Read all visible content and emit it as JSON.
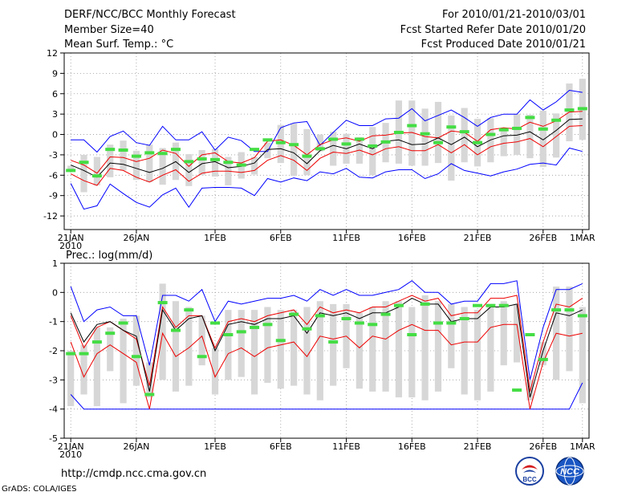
{
  "header": {
    "title": "DERF/NCC/BCC Monthly Forecast",
    "member_size": "Member Size=40",
    "variable": "Mean Surf. Temp.: °C",
    "period": "For 2010/01/21-2010/03/01",
    "started": "Fcst Started Refer Date 2010/01/20",
    "produced": "Fcst Produced Date 2010/01/21"
  },
  "footer": {
    "url": "http://cmdp.ncc.cma.gov.cn",
    "credit": "GrADS: COLA/IGES",
    "logo_left": "BCC",
    "logo_right": "NCC"
  },
  "colors": {
    "envelope": "#0000ff",
    "band": "#ee0000",
    "mean": "#000000",
    "box": "#d7d7d7",
    "marker": "#44dd44",
    "grid": "#999999"
  },
  "chart_data": [
    {
      "type": "line",
      "title": "Mean Surf. Temp.: °C",
      "x_tick_labels": [
        "21JAN",
        "26JAN",
        "1FEB",
        "6FEB",
        "11FEB",
        "16FEB",
        "21FEB",
        "26FEB",
        "1MAR"
      ],
      "x_tick_days": [
        0,
        5,
        11,
        16,
        21,
        26,
        31,
        36,
        39
      ],
      "x_year_label": "2010",
      "xlim": [
        -0.5,
        39.5
      ],
      "ylim": [
        -14,
        12
      ],
      "y_ticks": [
        12,
        9,
        6,
        3,
        0,
        -3,
        -6,
        -9,
        -12
      ],
      "series": [
        {
          "name": "max",
          "values": [
            -0.8,
            -0.8,
            -2.6,
            -0.3,
            0.5,
            -1.2,
            -1.6,
            1.2,
            -0.8,
            -0.8,
            0.4,
            -2.3,
            -0.4,
            -0.9,
            -2.5,
            -2.5,
            1.0,
            1.7,
            1.9,
            -1.6,
            0.3,
            2.1,
            1.3,
            1.3,
            2.3,
            2.4,
            3.8,
            2.0,
            2.8,
            3.6,
            2.5,
            1.2,
            2.5,
            3.0,
            3.0,
            5.1,
            3.6,
            4.8,
            6.5,
            6.2
          ]
        },
        {
          "name": "upper",
          "values": [
            -3.8,
            -4.5,
            -5.7,
            -3.3,
            -3.4,
            -4.0,
            -3.5,
            -2.3,
            -2.8,
            -4.7,
            -3.0,
            -2.7,
            -4.0,
            -4.2,
            -3.4,
            -1.0,
            -0.8,
            -1.6,
            -3.0,
            -1.5,
            -0.8,
            -0.5,
            -1.0,
            -0.2,
            -0.1,
            0.2,
            0.3,
            -0.3,
            -0.5,
            0.5,
            0.3,
            -1.0,
            0.7,
            1.0,
            0.8,
            1.8,
            1.2,
            2.0,
            3.3,
            3.4
          ]
        },
        {
          "name": "mean",
          "values": [
            -4.5,
            -5.3,
            -6.3,
            -4.2,
            -4.4,
            -5.0,
            -5.6,
            -5.0,
            -4.0,
            -5.6,
            -4.3,
            -4.0,
            -4.9,
            -4.7,
            -4.2,
            -2.2,
            -2.1,
            -2.7,
            -4.3,
            -2.4,
            -1.6,
            -2.1,
            -1.4,
            -2.1,
            -1.0,
            -0.8,
            -1.5,
            -1.4,
            -0.5,
            -1.5,
            -0.4,
            -1.8,
            -0.8,
            -0.2,
            -0.1,
            0.4,
            -0.8,
            0.6,
            2.2,
            2.3
          ]
        },
        {
          "name": "lower",
          "values": [
            -5.8,
            -6.8,
            -7.5,
            -5.0,
            -5.3,
            -6.3,
            -7.0,
            -6.0,
            -5.2,
            -6.9,
            -5.7,
            -5.4,
            -5.4,
            -5.6,
            -5.3,
            -3.8,
            -3.1,
            -3.8,
            -5.3,
            -3.5,
            -2.6,
            -2.8,
            -2.3,
            -3.0,
            -2.1,
            -1.8,
            -2.4,
            -2.4,
            -1.5,
            -2.7,
            -1.5,
            -3.0,
            -1.8,
            -1.3,
            -1.1,
            -0.6,
            -1.8,
            -0.3,
            1.2,
            1.3
          ]
        },
        {
          "name": "min",
          "values": [
            -7.2,
            -11.0,
            -10.5,
            -7.3,
            -8.7,
            -10.0,
            -10.7,
            -8.9,
            -7.9,
            -10.7,
            -7.9,
            -7.8,
            -7.8,
            -7.9,
            -9.0,
            -6.5,
            -7.0,
            -6.4,
            -6.8,
            -5.5,
            -5.8,
            -5.0,
            -6.3,
            -6.4,
            -5.5,
            -5.2,
            -5.2,
            -6.5,
            -5.8,
            -4.3,
            -5.3,
            -5.7,
            -6.1,
            -5.5,
            -5.1,
            -4.4,
            -4.2,
            -4.5,
            -2.0,
            -2.5
          ]
        },
        {
          "name": "box_high",
          "values": [
            -4.6,
            -3.0,
            -3.3,
            -1.5,
            -0.9,
            -2.4,
            -1.5,
            -2.0,
            -1.2,
            -2.9,
            -2.3,
            -2.1,
            -3.3,
            -2.6,
            -3.3,
            -1.2,
            1.4,
            1.6,
            0.8,
            0.0,
            0.4,
            0.1,
            -0.4,
            1.1,
            1.7,
            5.0,
            5.0,
            3.8,
            4.8,
            2.8,
            3.9,
            2.3,
            2.4,
            0.8,
            3.0,
            2.9,
            3.5,
            3.1,
            7.5,
            8.2
          ]
        },
        {
          "name": "box_low",
          "values": [
            -5.2,
            -8.5,
            -7.5,
            -6.3,
            -5.3,
            -6.7,
            -7.0,
            -7.4,
            -6.7,
            -7.6,
            -6.0,
            -6.2,
            -7.5,
            -6.5,
            -5.9,
            -3.5,
            -4.2,
            -6.1,
            -6.0,
            -2.5,
            -4.6,
            -4.3,
            -4.3,
            -6.0,
            -4.1,
            -4.3,
            -4.6,
            -4.6,
            -4.2,
            -6.8,
            -4.1,
            -4.7,
            -4.1,
            -3.2,
            -3.0,
            -3.5,
            -4.8,
            -3.4,
            -1.0,
            -0.8
          ]
        },
        {
          "name": "marker",
          "values": [
            -5.3,
            -4.1,
            -6.1,
            -2.2,
            -2.3,
            -3.2,
            -2.7,
            -2.8,
            -2.2,
            -4.0,
            -3.6,
            -3.7,
            -4.1,
            -4.5,
            -2.2,
            -0.8,
            -1.2,
            -1.5,
            -3.2,
            -2.1,
            -0.7,
            -1.4,
            -0.7,
            -1.7,
            -1.1,
            0.3,
            1.3,
            0.1,
            -1.2,
            1.1,
            0.4,
            -1.2,
            0.0,
            0.7,
            0.9,
            2.5,
            0.8,
            2.1,
            3.6,
            3.8
          ]
        }
      ]
    },
    {
      "type": "line",
      "title": "Prec.: log(mm/d)",
      "x_tick_labels": [
        "21JAN",
        "26JAN",
        "1FEB",
        "6FEB",
        "11FEB",
        "16FEB",
        "21FEB",
        "26FEB",
        "1MAR"
      ],
      "x_tick_days": [
        0,
        5,
        11,
        16,
        21,
        26,
        31,
        36,
        39
      ],
      "x_year_label": "2010",
      "xlim": [
        -0.5,
        39.5
      ],
      "ylim": [
        -5,
        1
      ],
      "y_ticks": [
        1,
        0,
        -1,
        -2,
        -3,
        -4,
        -5
      ],
      "series": [
        {
          "name": "max",
          "values": [
            0.2,
            -1.0,
            -0.6,
            -0.5,
            -0.8,
            -0.8,
            -2.5,
            -0.1,
            -0.1,
            -0.3,
            0.1,
            -1.0,
            -0.3,
            -0.4,
            -0.3,
            -0.2,
            -0.2,
            -0.1,
            -0.3,
            0.1,
            -0.1,
            0.1,
            -0.1,
            -0.1,
            0.0,
            0.1,
            0.4,
            0.0,
            0.0,
            -0.4,
            -0.3,
            -0.3,
            0.3,
            0.3,
            0.4,
            -3.0,
            -1.2,
            0.1,
            0.1,
            0.3
          ]
        },
        {
          "name": "upper",
          "values": [
            -0.8,
            -1.9,
            -1.2,
            -1.0,
            -1.3,
            -1.6,
            -3.2,
            -0.5,
            -1.2,
            -0.8,
            -0.8,
            -1.9,
            -1.0,
            -0.9,
            -1.0,
            -0.8,
            -0.7,
            -0.6,
            -1.1,
            -0.5,
            -0.7,
            -0.6,
            -0.7,
            -0.5,
            -0.5,
            -0.3,
            -0.1,
            -0.3,
            -0.2,
            -0.8,
            -0.7,
            -0.7,
            -0.2,
            -0.2,
            -0.1,
            -3.4,
            -1.7,
            -0.4,
            -0.5,
            -0.2
          ]
        },
        {
          "name": "mean",
          "values": [
            -0.7,
            -1.7,
            -1.1,
            -1.0,
            -1.3,
            -1.5,
            -3.4,
            -0.6,
            -1.3,
            -0.9,
            -0.8,
            -2.0,
            -1.1,
            -1.0,
            -1.1,
            -0.9,
            -0.9,
            -0.8,
            -1.4,
            -0.7,
            -0.8,
            -0.7,
            -0.9,
            -0.7,
            -0.7,
            -0.5,
            -0.2,
            -0.4,
            -0.4,
            -1.0,
            -0.9,
            -0.9,
            -0.5,
            -0.5,
            -0.4,
            -3.6,
            -2.0,
            -0.7,
            -0.8,
            -0.6
          ]
        },
        {
          "name": "lower",
          "values": [
            -1.7,
            -2.9,
            -2.1,
            -1.8,
            -2.1,
            -2.4,
            -4.0,
            -1.4,
            -2.2,
            -1.9,
            -1.5,
            -2.9,
            -2.1,
            -1.9,
            -2.2,
            -1.9,
            -1.8,
            -1.7,
            -2.2,
            -1.5,
            -1.6,
            -1.5,
            -1.9,
            -1.5,
            -1.6,
            -1.3,
            -1.1,
            -1.3,
            -1.3,
            -1.8,
            -1.7,
            -1.7,
            -1.2,
            -1.1,
            -1.1,
            -4.0,
            -2.4,
            -1.4,
            -1.5,
            -1.4
          ]
        },
        {
          "name": "min",
          "values": [
            -3.5,
            -4.0,
            -4.0,
            -4.0,
            -4.0,
            -4.0,
            -4.0,
            -4.0,
            -4.0,
            -4.0,
            -4.0,
            -4.0,
            -4.0,
            -4.0,
            -4.0,
            -4.0,
            -4.0,
            -4.0,
            -4.0,
            -4.0,
            -4.0,
            -4.0,
            -4.0,
            -4.0,
            -4.0,
            -4.0,
            -4.0,
            -4.0,
            -4.0,
            -4.0,
            -4.0,
            -4.0,
            -4.0,
            -4.0,
            -4.0,
            -4.0,
            -4.0,
            -4.0,
            -4.0,
            -3.1
          ]
        },
        {
          "name": "box_high",
          "values": [
            -2.0,
            -1.8,
            -1.2,
            -1.2,
            -0.9,
            -0.8,
            -2.4,
            0.3,
            -0.3,
            -0.5,
            -0.8,
            -1.9,
            -0.6,
            -0.6,
            -0.6,
            -0.5,
            -0.6,
            -0.6,
            -0.5,
            -0.3,
            -0.4,
            -0.4,
            -0.7,
            -0.5,
            -0.3,
            -0.3,
            -0.5,
            -0.1,
            -0.3,
            -0.4,
            -0.5,
            -0.6,
            -0.4,
            -0.3,
            -0.4,
            -3.0,
            -1.7,
            0.2,
            0.2,
            -0.5
          ]
        },
        {
          "name": "box_low",
          "values": [
            -3.9,
            -3.5,
            -3.9,
            -2.7,
            -3.8,
            -3.2,
            -3.6,
            -3.0,
            -3.4,
            -3.2,
            -2.5,
            -3.5,
            -3.0,
            -2.9,
            -3.5,
            -3.1,
            -3.3,
            -3.2,
            -3.5,
            -3.7,
            -3.2,
            -2.6,
            -3.3,
            -3.4,
            -3.4,
            -3.6,
            -3.6,
            -3.7,
            -3.4,
            -2.6,
            -3.5,
            -3.7,
            -3.4,
            -2.5,
            -2.4,
            -3.7,
            -2.5,
            -3.0,
            -2.7,
            -3.8
          ]
        },
        {
          "name": "marker",
          "values": [
            -2.1,
            -2.1,
            -1.7,
            -1.4,
            -1.05,
            -2.2,
            -3.5,
            -0.35,
            -1.3,
            -0.6,
            -2.2,
            -1.05,
            -1.45,
            -1.35,
            -1.2,
            -1.1,
            -1.65,
            -0.75,
            -1.25,
            -0.8,
            -1.7,
            -0.9,
            -1.05,
            -1.1,
            -0.75,
            -0.45,
            -1.45,
            -0.4,
            -1.05,
            -1.05,
            -0.9,
            -0.45,
            -0.45,
            -0.45,
            -3.35,
            -1.45,
            -2.3,
            -0.6,
            -0.6,
            -0.8
          ]
        }
      ]
    }
  ]
}
